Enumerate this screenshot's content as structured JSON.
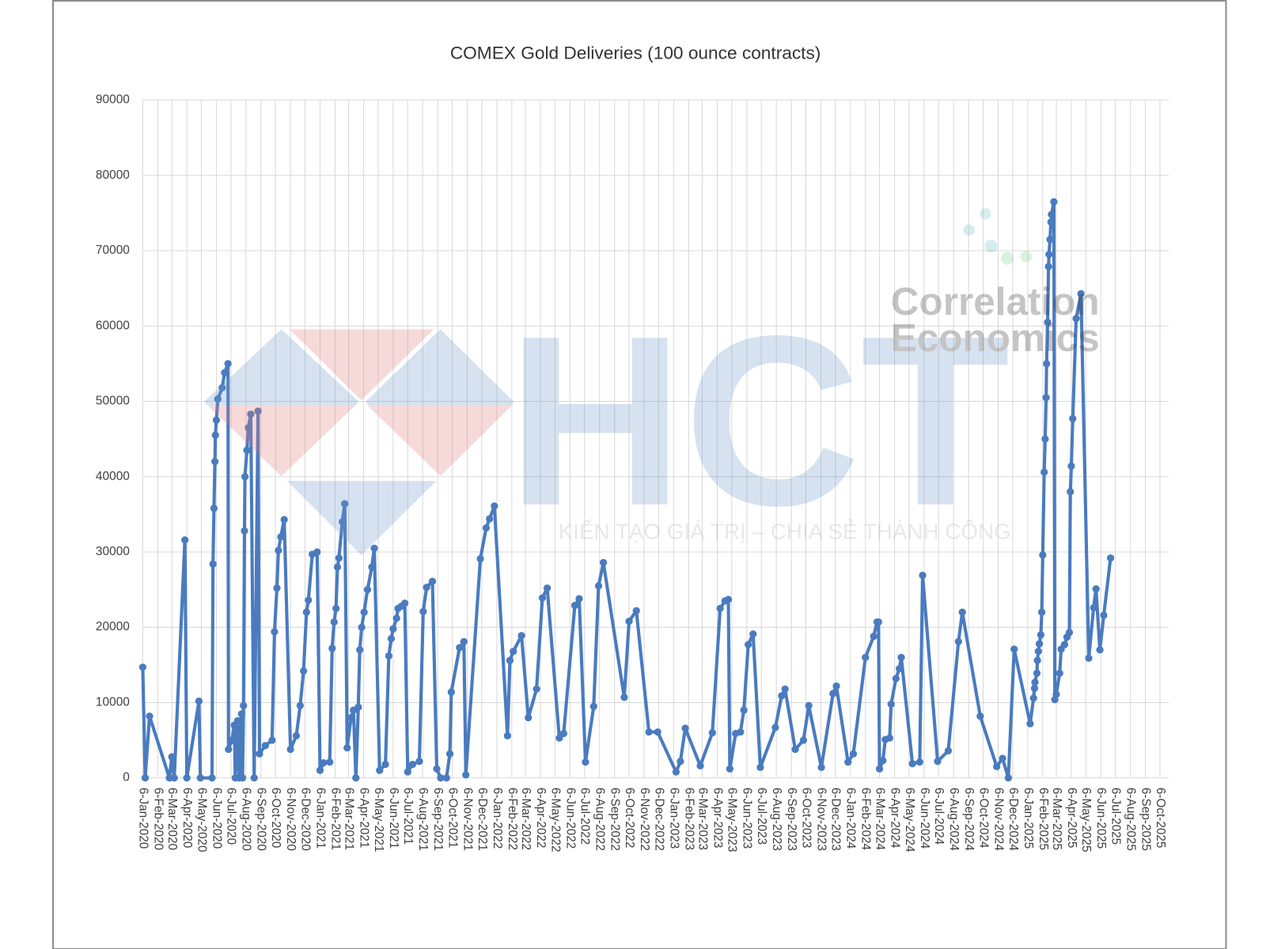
{
  "chart_data": {
    "type": "line",
    "title": "COMEX Gold Deliveries (100 ounce contracts)",
    "watermarks": [
      "HCT",
      "KIẾN TẠO GIÁ TRỊ – CHIA SẺ THÀNH CÔNG",
      "Correlation",
      "Economics"
    ],
    "grid": true,
    "xlim": [
      "2020-01-06",
      "2025-10-06"
    ],
    "xticks": [
      {
        "value": "2020-01-06",
        "label": "6-Jan-2020"
      },
      {
        "value": "2020-02-06",
        "label": "6-Feb-2020"
      },
      {
        "value": "2020-03-06",
        "label": "6-Mar-2020"
      },
      {
        "value": "2020-04-06",
        "label": "6-Apr-2020"
      },
      {
        "value": "2020-05-06",
        "label": "6-May-2020"
      },
      {
        "value": "2020-06-06",
        "label": "6-Jun-2020"
      },
      {
        "value": "2020-07-06",
        "label": "6-Jul-2020"
      },
      {
        "value": "2020-08-06",
        "label": "6-Aug-2020"
      },
      {
        "value": "2020-09-06",
        "label": "6-Sep-2020"
      },
      {
        "value": "2020-10-06",
        "label": "6-Oct-2020"
      },
      {
        "value": "2020-11-06",
        "label": "6-Nov-2020"
      },
      {
        "value": "2020-12-06",
        "label": "6-Dec-2020"
      },
      {
        "value": "2021-01-06",
        "label": "6-Jan-2021"
      },
      {
        "value": "2021-02-06",
        "label": "6-Feb-2021"
      },
      {
        "value": "2021-03-06",
        "label": "6-Mar-2021"
      },
      {
        "value": "2021-04-06",
        "label": "6-Apr-2021"
      },
      {
        "value": "2021-05-06",
        "label": "6-May-2021"
      },
      {
        "value": "2021-06-06",
        "label": "6-Jun-2021"
      },
      {
        "value": "2021-07-06",
        "label": "6-Jul-2021"
      },
      {
        "value": "2021-08-06",
        "label": "6-Aug-2021"
      },
      {
        "value": "2021-09-06",
        "label": "6-Sep-2021"
      },
      {
        "value": "2021-10-06",
        "label": "6-Oct-2021"
      },
      {
        "value": "2021-11-06",
        "label": "6-Nov-2021"
      },
      {
        "value": "2021-12-06",
        "label": "6-Dec-2021"
      },
      {
        "value": "2022-01-06",
        "label": "6-Jan-2022"
      },
      {
        "value": "2022-02-06",
        "label": "6-Feb-2022"
      },
      {
        "value": "2022-03-06",
        "label": "6-Mar-2022"
      },
      {
        "value": "2022-04-06",
        "label": "6-Apr-2022"
      },
      {
        "value": "2022-05-06",
        "label": "6-May-2022"
      },
      {
        "value": "2022-06-06",
        "label": "6-Jun-2022"
      },
      {
        "value": "2022-07-06",
        "label": "6-Jul-2022"
      },
      {
        "value": "2022-08-06",
        "label": "6-Aug-2022"
      },
      {
        "value": "2022-09-06",
        "label": "6-Sep-2022"
      },
      {
        "value": "2022-10-06",
        "label": "6-Oct-2022"
      },
      {
        "value": "2022-11-06",
        "label": "6-Nov-2022"
      },
      {
        "value": "2022-12-06",
        "label": "6-Dec-2022"
      },
      {
        "value": "2023-01-06",
        "label": "6-Jan-2023"
      },
      {
        "value": "2023-02-06",
        "label": "6-Feb-2023"
      },
      {
        "value": "2023-03-06",
        "label": "6-Mar-2023"
      },
      {
        "value": "2023-04-06",
        "label": "6-Apr-2023"
      },
      {
        "value": "2023-05-06",
        "label": "6-May-2023"
      },
      {
        "value": "2023-06-06",
        "label": "6-Jun-2023"
      },
      {
        "value": "2023-07-06",
        "label": "6-Jul-2023"
      },
      {
        "value": "2023-08-06",
        "label": "6-Aug-2023"
      },
      {
        "value": "2023-09-06",
        "label": "6-Sep-2023"
      },
      {
        "value": "2023-10-06",
        "label": "6-Oct-2023"
      },
      {
        "value": "2023-11-06",
        "label": "6-Nov-2023"
      },
      {
        "value": "2023-12-06",
        "label": "6-Dec-2023"
      },
      {
        "value": "2024-01-06",
        "label": "6-Jan-2024"
      },
      {
        "value": "2024-02-06",
        "label": "6-Feb-2024"
      },
      {
        "value": "2024-03-06",
        "label": "6-Mar-2024"
      },
      {
        "value": "2024-04-06",
        "label": "6-Apr-2024"
      },
      {
        "value": "2024-05-06",
        "label": "6-May-2024"
      },
      {
        "value": "2024-06-06",
        "label": "6-Jun-2024"
      },
      {
        "value": "2024-07-06",
        "label": "6-Jul-2024"
      },
      {
        "value": "2024-08-06",
        "label": "6-Aug-2024"
      },
      {
        "value": "2024-09-06",
        "label": "6-Sep-2024"
      },
      {
        "value": "2024-10-06",
        "label": "6-Oct-2024"
      },
      {
        "value": "2024-11-06",
        "label": "6-Nov-2024"
      },
      {
        "value": "2024-12-06",
        "label": "6-Dec-2024"
      },
      {
        "value": "2025-01-06",
        "label": "6-Jan-2025"
      },
      {
        "value": "2025-02-06",
        "label": "6-Feb-2025"
      },
      {
        "value": "2025-03-06",
        "label": "6-Mar-2025"
      },
      {
        "value": "2025-04-06",
        "label": "6-Apr-2025"
      },
      {
        "value": "2025-05-06",
        "label": "6-May-2025"
      },
      {
        "value": "2025-06-06",
        "label": "6-Jun-2025"
      },
      {
        "value": "2025-07-06",
        "label": "6-Jul-2025"
      },
      {
        "value": "2025-08-06",
        "label": "6-Aug-2025"
      },
      {
        "value": "2025-09-06",
        "label": "6-Sep-2025"
      },
      {
        "value": "2025-10-06",
        "label": "6-Oct-2025"
      }
    ],
    "ylim": [
      0,
      90000
    ],
    "yticks": [
      0,
      10000,
      20000,
      30000,
      40000,
      50000,
      60000,
      70000,
      80000,
      90000
    ],
    "x": [
      "2020-01-06",
      "2020-01-11",
      "2020-01-20",
      "2020-03-01",
      "2020-03-06",
      "2020-03-11",
      "2020-04-02",
      "2020-04-06",
      "2020-05-01",
      "2020-05-04",
      "2020-05-28",
      "2020-05-30",
      "2020-06-01",
      "2020-06-03",
      "2020-06-04",
      "2020-06-06",
      "2020-06-09",
      "2020-06-18",
      "2020-06-23",
      "2020-06-30",
      "2020-07-01",
      "2020-07-08",
      "2020-07-13",
      "2020-07-15",
      "2020-07-20",
      "2020-07-23",
      "2020-07-28",
      "2020-07-30",
      "2020-08-01",
      "2020-08-03",
      "2020-08-04",
      "2020-08-08",
      "2020-08-11",
      "2020-08-16",
      "2020-08-23",
      "2020-08-31",
      "2020-09-03",
      "2020-09-15",
      "2020-09-29",
      "2020-10-04",
      "2020-10-09",
      "2020-10-12",
      "2020-10-17",
      "2020-10-24",
      "2020-11-06",
      "2020-11-18",
      "2020-11-26",
      "2020-12-03",
      "2020-12-09",
      "2020-12-13",
      "2020-12-21",
      "2020-12-31",
      "2021-01-06",
      "2021-01-13",
      "2021-01-26",
      "2021-01-31",
      "2021-02-04",
      "2021-02-08",
      "2021-02-11",
      "2021-02-14",
      "2021-02-21",
      "2021-02-26",
      "2021-03-03",
      "2021-03-11",
      "2021-03-16",
      "2021-03-21",
      "2021-03-26",
      "2021-03-29",
      "2021-04-02",
      "2021-04-07",
      "2021-04-14",
      "2021-04-23",
      "2021-04-28",
      "2021-05-09",
      "2021-05-21",
      "2021-05-28",
      "2021-06-02",
      "2021-06-06",
      "2021-06-13",
      "2021-06-16",
      "2021-06-23",
      "2021-06-30",
      "2021-07-06",
      "2021-07-16",
      "2021-07-30",
      "2021-08-07",
      "2021-08-14",
      "2021-08-26",
      "2021-09-04",
      "2021-09-12",
      "2021-09-24",
      "2021-10-01",
      "2021-10-04",
      "2021-10-21",
      "2021-10-30",
      "2021-11-03",
      "2021-12-03",
      "2021-12-15",
      "2021-12-22",
      "2022-01-01",
      "2022-01-28",
      "2022-02-02",
      "2022-02-09",
      "2022-02-26",
      "2022-03-12",
      "2022-03-29",
      "2022-04-10",
      "2022-04-20",
      "2022-05-15",
      "2022-05-24",
      "2022-06-16",
      "2022-06-25",
      "2022-07-08",
      "2022-07-25",
      "2022-08-04",
      "2022-08-14",
      "2022-09-26",
      "2022-10-06",
      "2022-10-21",
      "2022-11-16",
      "2022-12-04",
      "2023-01-11",
      "2023-01-20",
      "2023-01-30",
      "2023-03-02",
      "2023-03-27",
      "2023-04-12",
      "2023-04-22",
      "2023-04-29",
      "2023-05-02",
      "2023-05-14",
      "2023-05-24",
      "2023-05-31",
      "2023-06-09",
      "2023-06-19",
      "2023-07-04",
      "2023-08-04",
      "2023-08-17",
      "2023-08-24",
      "2023-09-14",
      "2023-10-01",
      "2023-10-12",
      "2023-11-07",
      "2023-12-01",
      "2023-12-08",
      "2024-01-01",
      "2024-01-12",
      "2024-02-06",
      "2024-02-23",
      "2024-03-01",
      "2024-03-04",
      "2024-03-06",
      "2024-03-13",
      "2024-03-18",
      "2024-03-27",
      "2024-03-30",
      "2024-04-09",
      "2024-04-16",
      "2024-04-20",
      "2024-05-13",
      "2024-05-28",
      "2024-06-03",
      "2024-07-04",
      "2024-07-26",
      "2024-08-16",
      "2024-08-24",
      "2024-09-30",
      "2024-11-03",
      "2024-11-15",
      "2024-11-27",
      "2024-12-09",
      "2025-01-11",
      "2025-01-18",
      "2025-01-20",
      "2025-01-21",
      "2025-01-25",
      "2025-01-26",
      "2025-01-28",
      "2025-01-30",
      "2025-02-02",
      "2025-02-04",
      "2025-02-06",
      "2025-02-09",
      "2025-02-11",
      "2025-02-13",
      "2025-02-14",
      "2025-02-16",
      "2025-02-18",
      "2025-02-19",
      "2025-02-21",
      "2025-02-23",
      "2025-02-24",
      "2025-03-01",
      "2025-03-03",
      "2025-03-06",
      "2025-03-13",
      "2025-03-16",
      "2025-03-23",
      "2025-03-28",
      "2025-04-02",
      "2025-04-04",
      "2025-04-06",
      "2025-04-09",
      "2025-04-16",
      "2025-04-26",
      "2025-05-12",
      "2025-05-22",
      "2025-05-27",
      "2025-06-04",
      "2025-06-12",
      "2025-06-26"
    ],
    "series": [
      {
        "color": "#4a7bbf",
        "values": [
          14700,
          0,
          8200,
          0,
          2800,
          0,
          31600,
          0,
          10200,
          0,
          0,
          28400,
          35800,
          42000,
          45500,
          47500,
          50300,
          51800,
          53800,
          55000,
          3800,
          5000,
          7000,
          0,
          7600,
          0,
          8500,
          0,
          9600,
          32800,
          40000,
          43500,
          46500,
          48300,
          0,
          48700,
          3200,
          4300,
          5000,
          19400,
          25200,
          30200,
          32000,
          34300,
          3800,
          5600,
          9600,
          14200,
          22000,
          23600,
          29700,
          30000,
          1000,
          2000,
          2100,
          17200,
          20700,
          22500,
          28000,
          29200,
          34000,
          36400,
          4000,
          8000,
          9000,
          0,
          9400,
          17000,
          20000,
          22000,
          25000,
          28000,
          30500,
          1000,
          1800,
          16200,
          18500,
          19800,
          21200,
          22500,
          22800,
          23200,
          800,
          1800,
          2200,
          22100,
          25300,
          26100,
          1200,
          0,
          0,
          3200,
          11400,
          17300,
          18100,
          400,
          29100,
          33200,
          34400,
          36100,
          5600,
          15600,
          16800,
          18900,
          8000,
          11800,
          23900,
          25200,
          5300,
          5900,
          22900,
          23800,
          2100,
          9500,
          25500,
          28600,
          10700,
          20800,
          22200,
          6100,
          6100,
          800,
          2200,
          6600,
          1600,
          6000,
          22500,
          23500,
          23700,
          1200,
          5900,
          6100,
          9000,
          17700,
          19100,
          1400,
          6700,
          10900,
          11800,
          3800,
          5000,
          9600,
          1400,
          11200,
          12200,
          2100,
          3200,
          16000,
          18800,
          20700,
          20700,
          1200,
          2300,
          5100,
          5300,
          9800,
          13200,
          14500,
          16000,
          1900,
          2100,
          26900,
          2200,
          3600,
          18100,
          22000,
          8200,
          1500,
          2600,
          0,
          17100,
          7200,
          10600,
          11900,
          12700,
          13900,
          15600,
          16800,
          17800,
          19000,
          22000,
          29600,
          40600,
          45000,
          50500,
          55000,
          60500,
          67900,
          69500,
          71500,
          73800,
          74800,
          76500,
          10400,
          11100,
          13900,
          17100,
          17700,
          18700,
          19300,
          38000,
          41400,
          47700,
          61000,
          64300,
          15900,
          22600,
          25100,
          17000,
          21600,
          29200
        ]
      }
    ]
  }
}
